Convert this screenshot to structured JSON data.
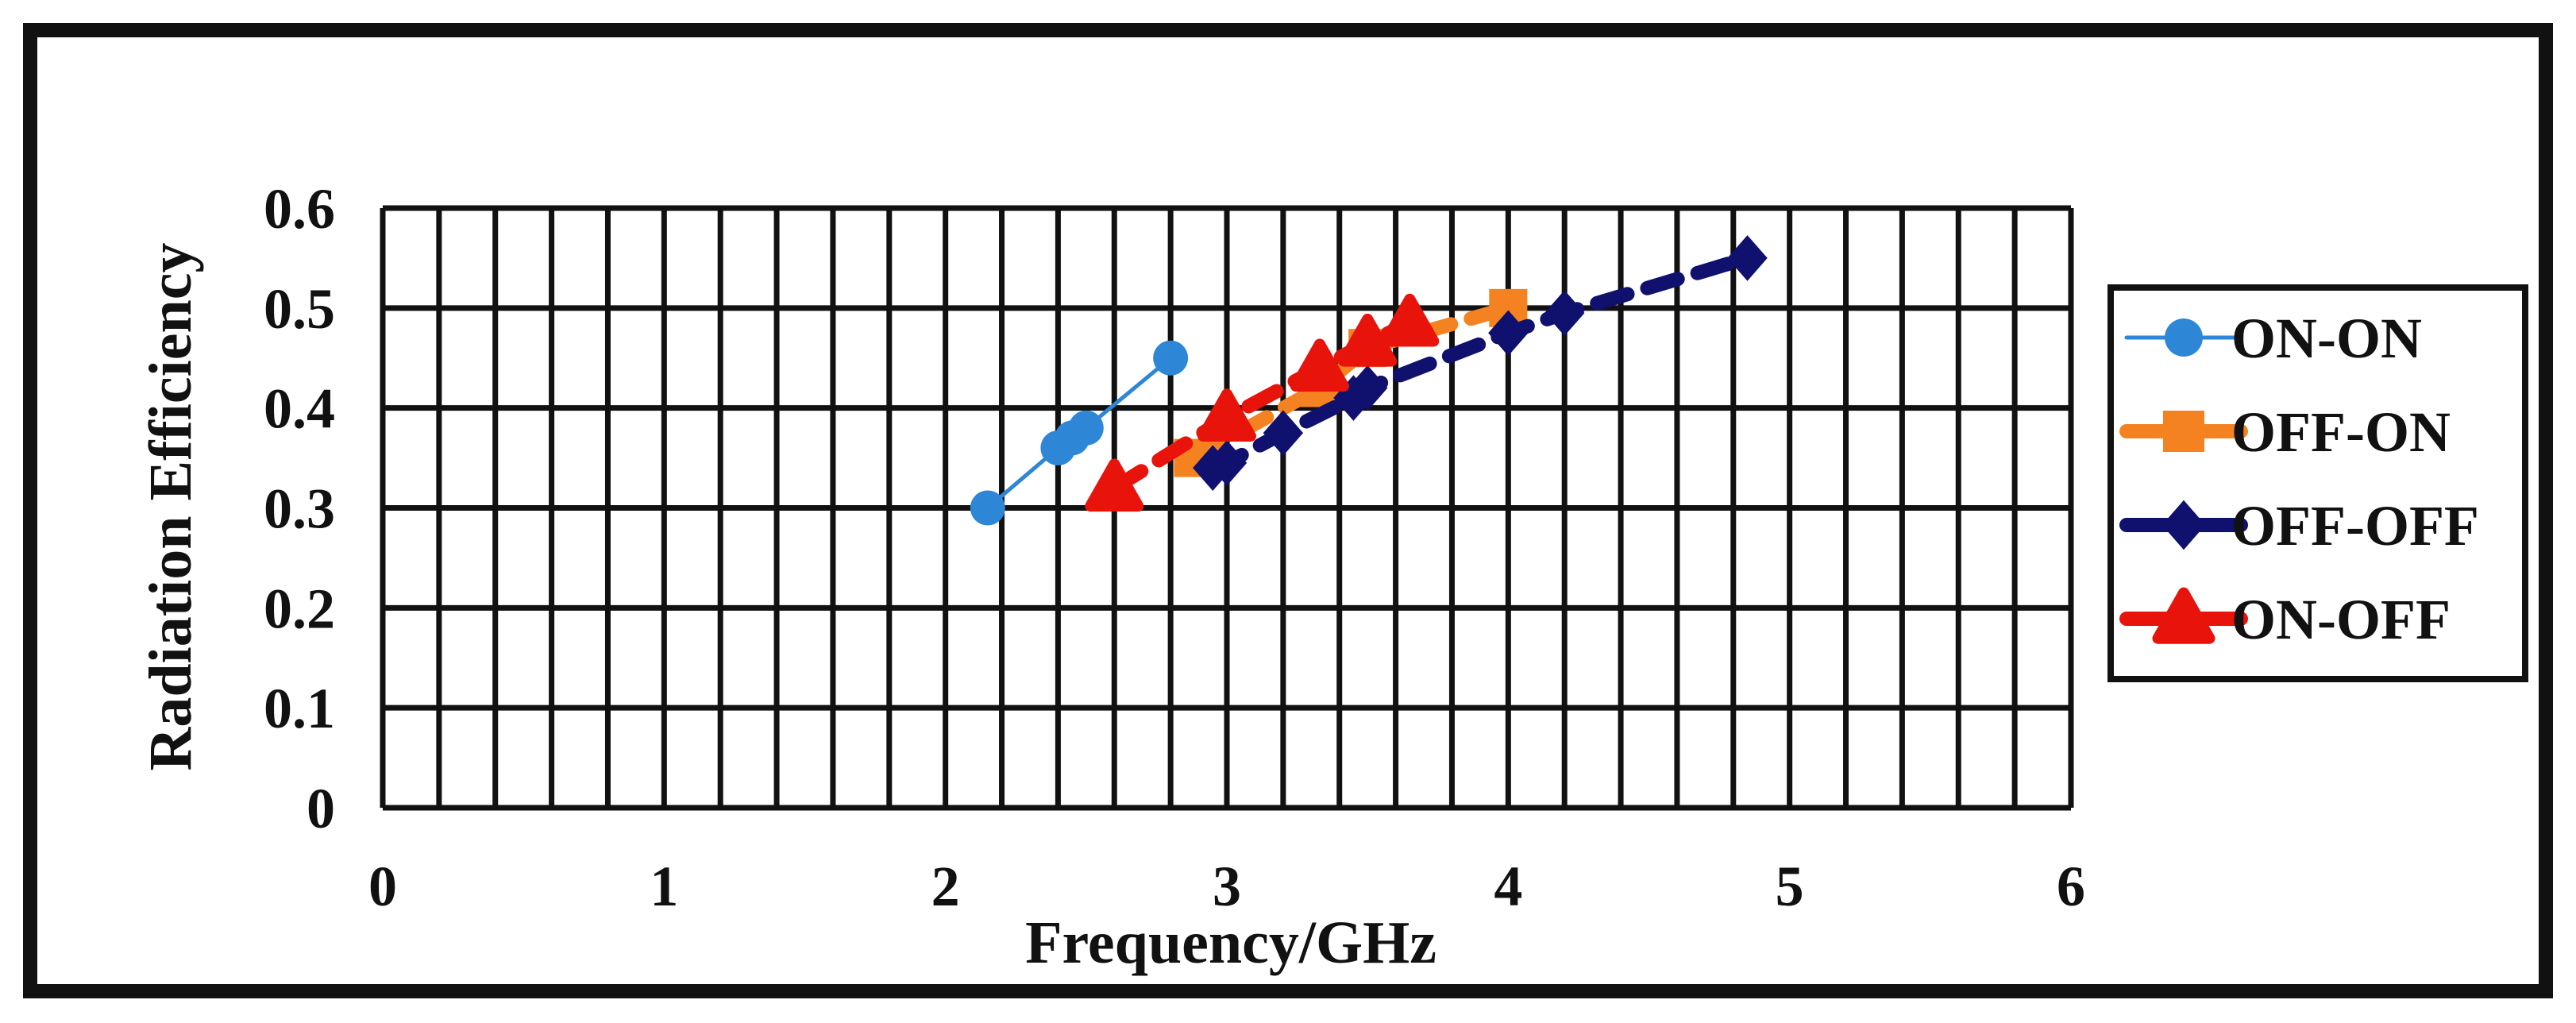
{
  "chart_data": {
    "type": "line",
    "title": "",
    "xlabel": "Frequency/GHz",
    "ylabel": "Radiation Efficiency",
    "xlim": [
      0,
      6
    ],
    "ylim": [
      0,
      0.6
    ],
    "x_ticks": [
      "0",
      "1",
      "2",
      "3",
      "4",
      "5",
      "6"
    ],
    "y_ticks": [
      "0",
      "0.1",
      "0.2",
      "0.3",
      "0.4",
      "0.5",
      "0.6"
    ],
    "grid": true,
    "legend_position": "right",
    "series": [
      {
        "name": "ON-ON",
        "color": "#2e86d6",
        "marker": "circle",
        "line": "solid",
        "points": [
          [
            2.15,
            0.3
          ],
          [
            2.4,
            0.36
          ],
          [
            2.45,
            0.37
          ],
          [
            2.5,
            0.38
          ],
          [
            2.8,
            0.45
          ]
        ]
      },
      {
        "name": "OFF-ON",
        "color": "#f58220",
        "marker": "square",
        "line": "dashed",
        "points": [
          [
            2.88,
            0.35
          ],
          [
            3.33,
            0.42
          ],
          [
            3.5,
            0.46
          ],
          [
            4.0,
            0.5
          ]
        ]
      },
      {
        "name": "OFF-OFF",
        "color": "#10106e",
        "marker": "diamond",
        "line": "dashed",
        "points": [
          [
            2.95,
            0.34
          ],
          [
            3.0,
            0.345
          ],
          [
            3.2,
            0.375
          ],
          [
            3.45,
            0.41
          ],
          [
            3.5,
            0.42
          ],
          [
            4.0,
            0.475
          ],
          [
            4.2,
            0.495
          ],
          [
            4.85,
            0.55
          ]
        ]
      },
      {
        "name": "ON-OFF",
        "color": "#e8140c",
        "marker": "triangle",
        "line": "dashed",
        "points": [
          [
            2.6,
            0.32
          ],
          [
            3.0,
            0.39
          ],
          [
            3.33,
            0.44
          ],
          [
            3.5,
            0.465
          ],
          [
            3.65,
            0.485
          ]
        ]
      }
    ]
  }
}
